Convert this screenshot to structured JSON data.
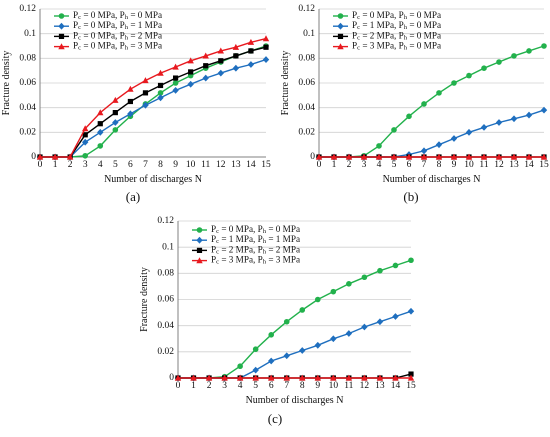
{
  "chart_data": [
    {
      "type": "line",
      "panel_label": "(a)",
      "xlabel": "Number of discharges N",
      "ylabel": "Fracture density",
      "xlim": [
        0,
        15
      ],
      "ylim": [
        0,
        0.12
      ],
      "xticks": [
        "0",
        "1",
        "2",
        "3",
        "4",
        "5",
        "6",
        "7",
        "8",
        "9",
        "10",
        "11",
        "12",
        "13",
        "14",
        "15"
      ],
      "yticks": [
        "0",
        "0.02",
        "0.04",
        "0.06",
        "0.08",
        "0.1",
        "0.12"
      ],
      "grid": "horizontal",
      "legend": "top-left",
      "x": [
        0,
        1,
        2,
        3,
        4,
        5,
        6,
        7,
        8,
        9,
        10,
        11,
        12,
        13,
        14,
        15
      ],
      "series": [
        {
          "name": "Pc = 0 MPa, Ph = 0 MPa",
          "color": "#22b14c",
          "marker": "circle",
          "values": [
            0,
            0,
            0,
            0.001,
            0.009,
            0.022,
            0.033,
            0.043,
            0.052,
            0.06,
            0.066,
            0.072,
            0.077,
            0.082,
            0.086,
            0.09
          ]
        },
        {
          "name": "Pc = 0 MPa, Ph = 1 MPa",
          "color": "#1f6fbf",
          "marker": "diamond",
          "values": [
            0,
            0,
            0,
            0.012,
            0.02,
            0.028,
            0.035,
            0.042,
            0.048,
            0.054,
            0.059,
            0.064,
            0.068,
            0.072,
            0.075,
            0.079
          ]
        },
        {
          "name": "Pc = 0 MPa, Ph = 2 MPa",
          "color": "#000000",
          "marker": "square",
          "values": [
            0,
            0,
            0,
            0.018,
            0.027,
            0.036,
            0.045,
            0.052,
            0.058,
            0.064,
            0.069,
            0.074,
            0.078,
            0.082,
            0.086,
            0.089
          ]
        },
        {
          "name": "Pc = 0 MPa, Ph = 3 MPa",
          "color": "#e8191f",
          "marker": "triangle",
          "values": [
            0,
            0,
            0,
            0.023,
            0.036,
            0.046,
            0.055,
            0.062,
            0.068,
            0.073,
            0.078,
            0.082,
            0.086,
            0.089,
            0.093,
            0.096
          ]
        }
      ]
    },
    {
      "type": "line",
      "panel_label": "(b)",
      "xlabel": "Number of discharges N",
      "ylabel": "Fracture density",
      "xlim": [
        0,
        15
      ],
      "ylim": [
        0,
        0.12
      ],
      "xticks": [
        "0",
        "1",
        "2",
        "3",
        "4",
        "5",
        "6",
        "7",
        "8",
        "9",
        "10",
        "11",
        "12",
        "13",
        "14",
        "15"
      ],
      "yticks": [
        "0",
        "0.02",
        "0.04",
        "0.06",
        "0.08",
        "0.1",
        "0.12"
      ],
      "grid": "horizontal",
      "legend": "top-left",
      "x": [
        0,
        1,
        2,
        3,
        4,
        5,
        6,
        7,
        8,
        9,
        10,
        11,
        12,
        13,
        14,
        15
      ],
      "series": [
        {
          "name": "Pc = 0 MPa, Ph = 0 MPa",
          "color": "#22b14c",
          "marker": "circle",
          "values": [
            0,
            0,
            0,
            0.001,
            0.009,
            0.022,
            0.033,
            0.043,
            0.052,
            0.06,
            0.066,
            0.072,
            0.077,
            0.082,
            0.086,
            0.09
          ]
        },
        {
          "name": "Pc = 1 MPa, Ph = 0 MPa",
          "color": "#1f6fbf",
          "marker": "diamond",
          "values": [
            0,
            0,
            0,
            0,
            0,
            0,
            0.002,
            0.005,
            0.01,
            0.015,
            0.02,
            0.024,
            0.028,
            0.031,
            0.034,
            0.038
          ]
        },
        {
          "name": "Pc = 2 MPa, Ph = 0 MPa",
          "color": "#000000",
          "marker": "square",
          "values": [
            0,
            0,
            0,
            0,
            0,
            0,
            0,
            0,
            0,
            0,
            0,
            0,
            0,
            0,
            0,
            0
          ]
        },
        {
          "name": "Pc = 3 MPa, Ph = 0 MPa",
          "color": "#e8191f",
          "marker": "triangle",
          "values": [
            0,
            0,
            0,
            0,
            0,
            0,
            0,
            0,
            0,
            0,
            0,
            0,
            0,
            0,
            0,
            0
          ]
        }
      ]
    },
    {
      "type": "line",
      "panel_label": "(c)",
      "xlabel": "Number of discharges N",
      "ylabel": "Fracture density",
      "xlim": [
        0,
        15
      ],
      "ylim": [
        0,
        0.12
      ],
      "xticks": [
        "0",
        "1",
        "2",
        "3",
        "4",
        "5",
        "6",
        "7",
        "8",
        "9",
        "10",
        "11",
        "12",
        "13",
        "14",
        "15"
      ],
      "yticks": [
        "0",
        "0.02",
        "0.04",
        "0.06",
        "0.08",
        "0.1",
        "0.12"
      ],
      "grid": "horizontal",
      "legend": "top-left",
      "x": [
        0,
        1,
        2,
        3,
        4,
        5,
        6,
        7,
        8,
        9,
        10,
        11,
        12,
        13,
        14,
        15
      ],
      "series": [
        {
          "name": "Pc = 0 MPa, Ph = 0 MPa",
          "color": "#22b14c",
          "marker": "circle",
          "values": [
            0,
            0,
            0,
            0.001,
            0.009,
            0.022,
            0.033,
            0.043,
            0.052,
            0.06,
            0.066,
            0.072,
            0.077,
            0.082,
            0.086,
            0.09
          ]
        },
        {
          "name": "Pc = 1 MPa, Ph = 1 MPa",
          "color": "#1f6fbf",
          "marker": "diamond",
          "values": [
            0,
            0,
            0,
            0,
            0,
            0.006,
            0.013,
            0.017,
            0.021,
            0.025,
            0.03,
            0.034,
            0.039,
            0.043,
            0.047,
            0.051
          ]
        },
        {
          "name": "Pc = 2 MPa, Ph = 2 MPa",
          "color": "#000000",
          "marker": "square",
          "values": [
            0,
            0,
            0,
            0,
            0,
            0,
            0,
            0,
            0,
            0,
            0,
            0,
            0,
            0,
            0,
            0.003
          ]
        },
        {
          "name": "Pc = 3 MPa, Ph = 3 MPa",
          "color": "#e8191f",
          "marker": "triangle",
          "values": [
            0,
            0,
            0,
            0,
            0,
            0,
            0,
            0,
            0,
            0,
            0,
            0,
            0,
            0,
            0,
            0
          ]
        }
      ]
    }
  ]
}
